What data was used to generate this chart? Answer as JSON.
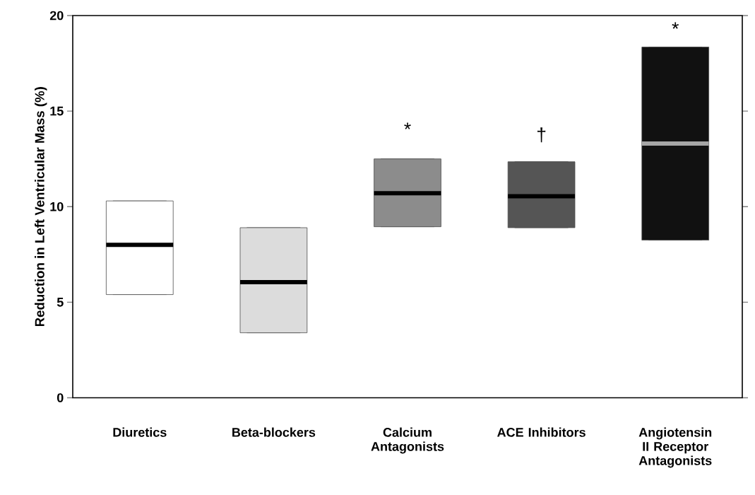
{
  "chart_data": {
    "type": "box",
    "ylabel": "Reduction in Left Ventricular Mass (%)",
    "categories": [
      "Diuretics",
      "Beta-blockers",
      "Calcium Antagonists",
      "ACE Inhibitors",
      "Angiotensin II Receptor Antagonists"
    ],
    "boxes": [
      {
        "low": 5.4,
        "q1": 5.4,
        "median": 8.0,
        "q3": 10.3,
        "high": 10.3
      },
      {
        "low": 3.4,
        "q1": 3.4,
        "median": 6.05,
        "q3": 8.9,
        "high": 8.9
      },
      {
        "low": 8.95,
        "q1": 8.95,
        "median": 10.7,
        "q3": 12.5,
        "high": 12.5
      },
      {
        "low": 8.9,
        "q1": 8.9,
        "median": 10.55,
        "q3": 12.35,
        "high": 12.35
      },
      {
        "low": 8.25,
        "q1": 8.25,
        "median": 13.3,
        "q3": 18.35,
        "high": 18.35
      }
    ],
    "colors": [
      "#ffffff",
      "#dcdcdc",
      "#8c8c8c",
      "#555555",
      "#111111"
    ],
    "ylim": [
      0,
      20
    ],
    "yticks": [
      0,
      5,
      10,
      15,
      20
    ],
    "annotations": [
      "*",
      "†",
      "*"
    ]
  }
}
